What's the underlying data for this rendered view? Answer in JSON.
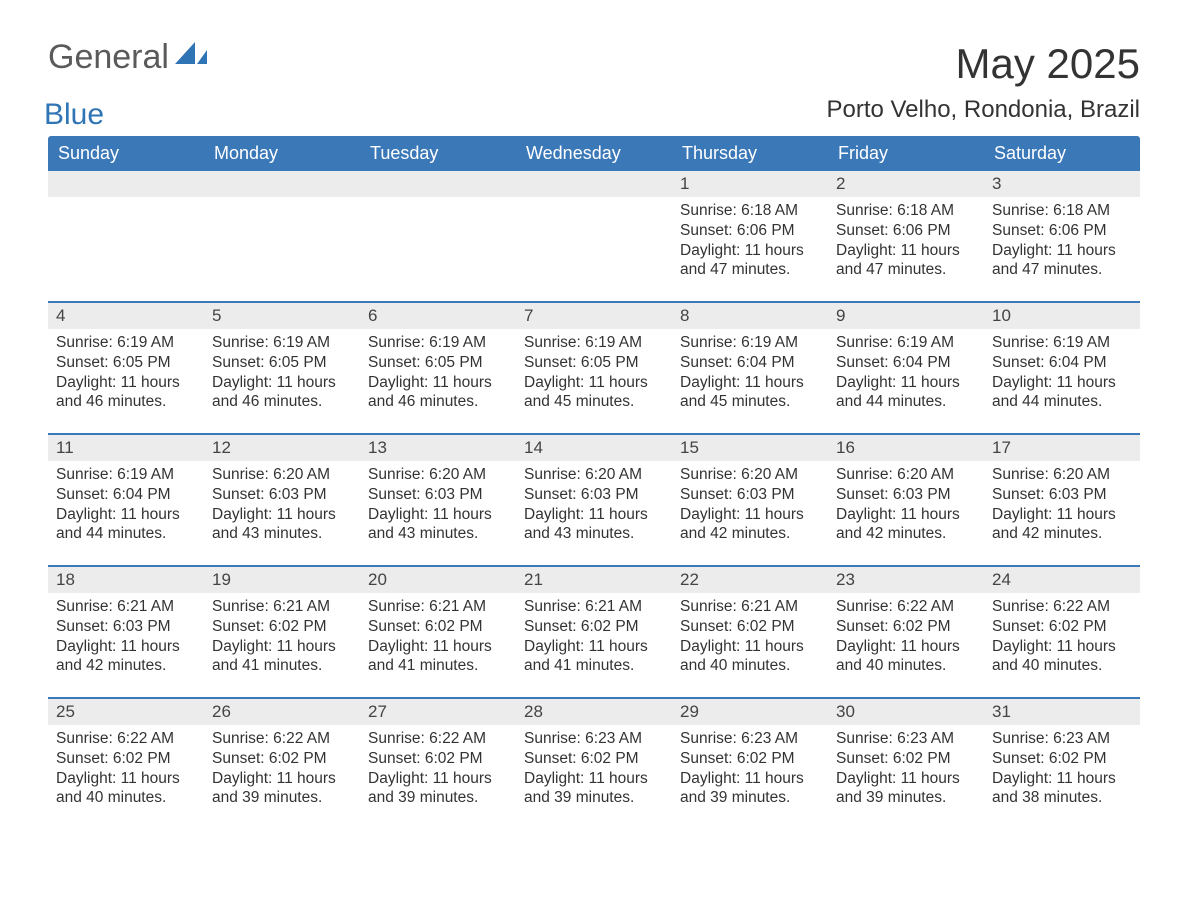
{
  "logo": {
    "word1": "General",
    "word2": "Blue",
    "sail_color": "#2f74b5"
  },
  "title": "May 2025",
  "location": "Porto Velho, Rondonia, Brazil",
  "colors": {
    "header_bg": "#3b78b8",
    "header_text": "#ffffff",
    "daynum_bg": "#ececec",
    "body_bg": "#ffffff",
    "text": "#333333",
    "rule": "#3b78b8"
  },
  "weekdays": [
    "Sunday",
    "Monday",
    "Tuesday",
    "Wednesday",
    "Thursday",
    "Friday",
    "Saturday"
  ],
  "weeks": [
    [
      {
        "n": "",
        "sr": "",
        "ss": "",
        "dl": ""
      },
      {
        "n": "",
        "sr": "",
        "ss": "",
        "dl": ""
      },
      {
        "n": "",
        "sr": "",
        "ss": "",
        "dl": ""
      },
      {
        "n": "",
        "sr": "",
        "ss": "",
        "dl": ""
      },
      {
        "n": "1",
        "sr": "6:18 AM",
        "ss": "6:06 PM",
        "dl": "11 hours and 47 minutes."
      },
      {
        "n": "2",
        "sr": "6:18 AM",
        "ss": "6:06 PM",
        "dl": "11 hours and 47 minutes."
      },
      {
        "n": "3",
        "sr": "6:18 AM",
        "ss": "6:06 PM",
        "dl": "11 hours and 47 minutes."
      }
    ],
    [
      {
        "n": "4",
        "sr": "6:19 AM",
        "ss": "6:05 PM",
        "dl": "11 hours and 46 minutes."
      },
      {
        "n": "5",
        "sr": "6:19 AM",
        "ss": "6:05 PM",
        "dl": "11 hours and 46 minutes."
      },
      {
        "n": "6",
        "sr": "6:19 AM",
        "ss": "6:05 PM",
        "dl": "11 hours and 46 minutes."
      },
      {
        "n": "7",
        "sr": "6:19 AM",
        "ss": "6:05 PM",
        "dl": "11 hours and 45 minutes."
      },
      {
        "n": "8",
        "sr": "6:19 AM",
        "ss": "6:04 PM",
        "dl": "11 hours and 45 minutes."
      },
      {
        "n": "9",
        "sr": "6:19 AM",
        "ss": "6:04 PM",
        "dl": "11 hours and 44 minutes."
      },
      {
        "n": "10",
        "sr": "6:19 AM",
        "ss": "6:04 PM",
        "dl": "11 hours and 44 minutes."
      }
    ],
    [
      {
        "n": "11",
        "sr": "6:19 AM",
        "ss": "6:04 PM",
        "dl": "11 hours and 44 minutes."
      },
      {
        "n": "12",
        "sr": "6:20 AM",
        "ss": "6:03 PM",
        "dl": "11 hours and 43 minutes."
      },
      {
        "n": "13",
        "sr": "6:20 AM",
        "ss": "6:03 PM",
        "dl": "11 hours and 43 minutes."
      },
      {
        "n": "14",
        "sr": "6:20 AM",
        "ss": "6:03 PM",
        "dl": "11 hours and 43 minutes."
      },
      {
        "n": "15",
        "sr": "6:20 AM",
        "ss": "6:03 PM",
        "dl": "11 hours and 42 minutes."
      },
      {
        "n": "16",
        "sr": "6:20 AM",
        "ss": "6:03 PM",
        "dl": "11 hours and 42 minutes."
      },
      {
        "n": "17",
        "sr": "6:20 AM",
        "ss": "6:03 PM",
        "dl": "11 hours and 42 minutes."
      }
    ],
    [
      {
        "n": "18",
        "sr": "6:21 AM",
        "ss": "6:03 PM",
        "dl": "11 hours and 42 minutes."
      },
      {
        "n": "19",
        "sr": "6:21 AM",
        "ss": "6:02 PM",
        "dl": "11 hours and 41 minutes."
      },
      {
        "n": "20",
        "sr": "6:21 AM",
        "ss": "6:02 PM",
        "dl": "11 hours and 41 minutes."
      },
      {
        "n": "21",
        "sr": "6:21 AM",
        "ss": "6:02 PM",
        "dl": "11 hours and 41 minutes."
      },
      {
        "n": "22",
        "sr": "6:21 AM",
        "ss": "6:02 PM",
        "dl": "11 hours and 40 minutes."
      },
      {
        "n": "23",
        "sr": "6:22 AM",
        "ss": "6:02 PM",
        "dl": "11 hours and 40 minutes."
      },
      {
        "n": "24",
        "sr": "6:22 AM",
        "ss": "6:02 PM",
        "dl": "11 hours and 40 minutes."
      }
    ],
    [
      {
        "n": "25",
        "sr": "6:22 AM",
        "ss": "6:02 PM",
        "dl": "11 hours and 40 minutes."
      },
      {
        "n": "26",
        "sr": "6:22 AM",
        "ss": "6:02 PM",
        "dl": "11 hours and 39 minutes."
      },
      {
        "n": "27",
        "sr": "6:22 AM",
        "ss": "6:02 PM",
        "dl": "11 hours and 39 minutes."
      },
      {
        "n": "28",
        "sr": "6:23 AM",
        "ss": "6:02 PM",
        "dl": "11 hours and 39 minutes."
      },
      {
        "n": "29",
        "sr": "6:23 AM",
        "ss": "6:02 PM",
        "dl": "11 hours and 39 minutes."
      },
      {
        "n": "30",
        "sr": "6:23 AM",
        "ss": "6:02 PM",
        "dl": "11 hours and 39 minutes."
      },
      {
        "n": "31",
        "sr": "6:23 AM",
        "ss": "6:02 PM",
        "dl": "11 hours and 38 minutes."
      }
    ]
  ],
  "labels": {
    "sunrise": "Sunrise:",
    "sunset": "Sunset:",
    "daylight": "Daylight:"
  }
}
